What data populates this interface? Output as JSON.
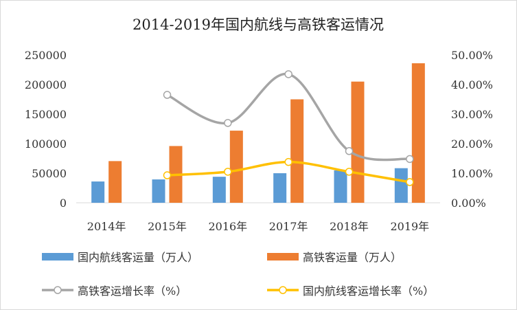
{
  "chart_data": {
    "type": "bar",
    "title": "2014-2019年国内航线与高铁客运情况",
    "categories": [
      "2014年",
      "2015年",
      "2016年",
      "2017年",
      "2018年",
      "2019年"
    ],
    "y_left": {
      "ylim": [
        0,
        250000
      ],
      "ticks": [
        "0",
        "50000",
        "100000",
        "150000",
        "200000",
        "250000"
      ]
    },
    "y_right": {
      "ylim": [
        0,
        50
      ],
      "ticks": [
        "0.00%",
        "10.00%",
        "20.00%",
        "30.00%",
        "40.00%",
        "50.00%"
      ]
    },
    "series": [
      {
        "name": "国内航线客运量（万人）",
        "type": "bar",
        "axis": "left",
        "color": "#5b9bd5",
        "values": [
          36000,
          39500,
          44000,
          50000,
          54800,
          58500
        ]
      },
      {
        "name": "高铁客运量（万人）",
        "type": "bar",
        "axis": "left",
        "color": "#ed7d31",
        "values": [
          70500,
          96000,
          122000,
          175000,
          205000,
          236000
        ]
      },
      {
        "name": "高铁客运增长率（%）",
        "type": "line",
        "axis": "right",
        "color": "#a5a5a5",
        "values": [
          null,
          36.5,
          27.0,
          43.5,
          17.5,
          14.8
        ]
      },
      {
        "name": "国内航线客运增长率（%）",
        "type": "line",
        "axis": "right",
        "color": "#ffc000",
        "values": [
          null,
          9.3,
          10.5,
          13.8,
          10.5,
          7.0
        ]
      }
    ],
    "grid": false,
    "legend": "bottom"
  }
}
